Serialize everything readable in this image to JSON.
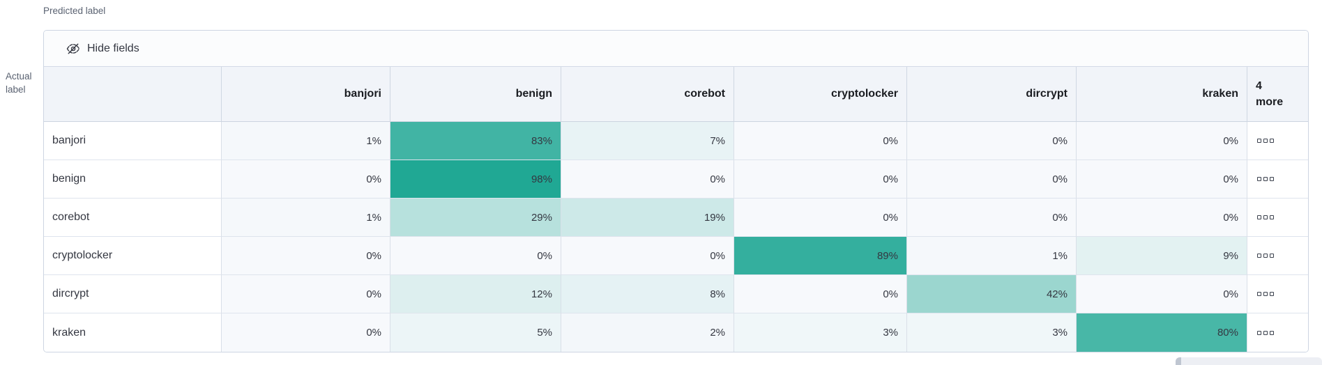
{
  "axis": {
    "predicted_label": "Predicted label",
    "actual_label_line1": "Actual",
    "actual_label_line2": "label"
  },
  "toolbar": {
    "hide_fields_label": "Hide fields",
    "hide_fields_icon": "eye-closed-icon"
  },
  "grid": {
    "columns": [
      "banjori",
      "benign",
      "corebot",
      "cryptolocker",
      "dircrypt",
      "kraken"
    ],
    "more_column": {
      "line1": "4",
      "line2": "more",
      "cell_icon": "boxes-horizontal-icon"
    },
    "rows": [
      {
        "label": "banjori",
        "values": [
          1,
          83,
          7,
          0,
          0,
          0
        ]
      },
      {
        "label": "benign",
        "values": [
          0,
          98,
          0,
          0,
          0,
          0
        ]
      },
      {
        "label": "corebot",
        "values": [
          1,
          29,
          19,
          0,
          0,
          0
        ]
      },
      {
        "label": "cryptolocker",
        "values": [
          0,
          0,
          0,
          89,
          1,
          9
        ]
      },
      {
        "label": "dircrypt",
        "values": [
          0,
          12,
          8,
          0,
          42,
          0
        ]
      },
      {
        "label": "kraken",
        "values": [
          0,
          5,
          2,
          3,
          3,
          80
        ]
      }
    ],
    "value_suffix": "%"
  },
  "colors": {
    "heat_base_teal": "#1CA692",
    "zero_cell_bg": "#F7F9FC",
    "header_bg": "#F1F4F9",
    "panel_border": "#CDD5E2",
    "text_dark": "#343741"
  }
}
